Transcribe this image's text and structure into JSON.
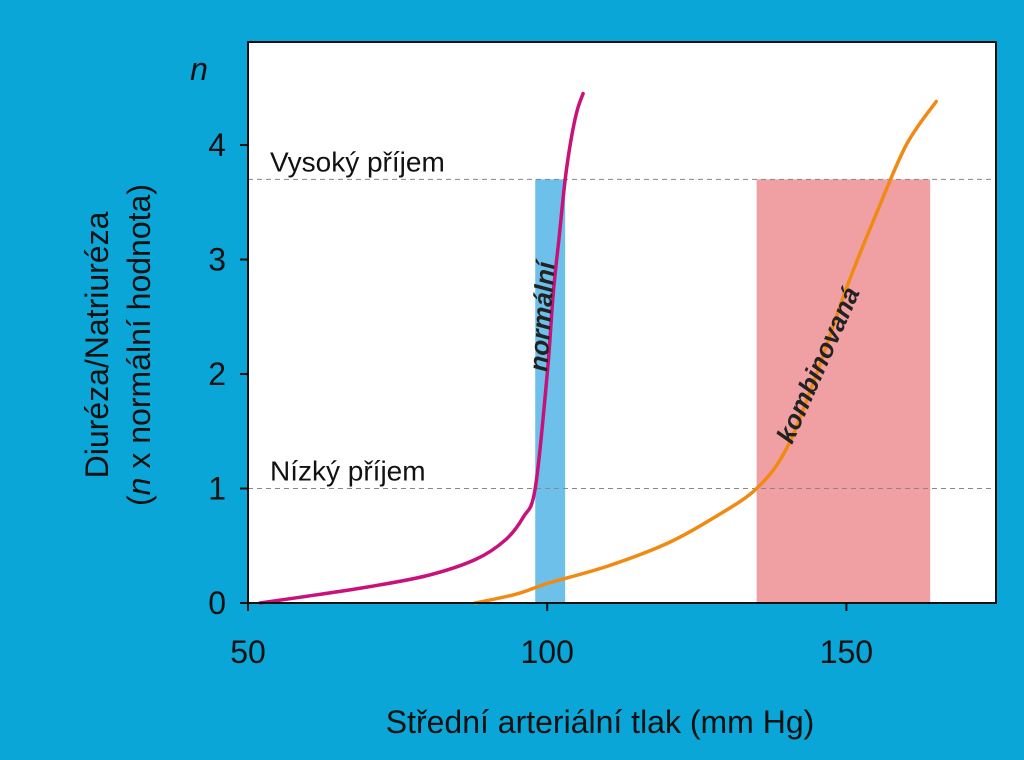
{
  "chart_data": {
    "type": "line",
    "xlabel": "Střední arteriální tlak (mm Hg)",
    "ylabel_line1": "Diuréza/Natriuréza",
    "ylabel_line2_italic": "n",
    "ylabel_line2_rest": " x normální hodnota)",
    "ylabel_line2_open": "(",
    "y_unit_label": "n",
    "xlim": [
      50,
      175
    ],
    "ylim": [
      0,
      4.9
    ],
    "xticks": [
      50,
      100,
      150
    ],
    "yticks": [
      0,
      1,
      2,
      3,
      4
    ],
    "grid": false,
    "reference_lines": [
      {
        "label": "Vysoký příjem",
        "y": 3.7
      },
      {
        "label": "Nízký příjem",
        "y": 1.0
      }
    ],
    "bands": [
      {
        "name": "normal-band",
        "x0": 98,
        "x1": 103,
        "y0": 0,
        "y1": 3.7,
        "color": "#6cc0ea"
      },
      {
        "name": "combined-band",
        "x0": 135,
        "x1": 164,
        "y0": 0,
        "y1": 3.7,
        "color": "#f0a0a3"
      }
    ],
    "series": [
      {
        "name": "normální",
        "color": "#c8127a",
        "x": [
          52,
          60,
          70,
          80,
          88,
          93,
          96,
          98,
          100,
          101,
          102,
          103,
          104,
          105,
          106
        ],
        "y": [
          0.0,
          0.06,
          0.14,
          0.24,
          0.38,
          0.55,
          0.75,
          1.0,
          2.0,
          2.7,
          3.2,
          3.7,
          4.05,
          4.3,
          4.45
        ]
      },
      {
        "name": "kombinovaná",
        "color": "#f08a12",
        "x": [
          88,
          95,
          100,
          110,
          120,
          128,
          135,
          140,
          145,
          150,
          155,
          160,
          165
        ],
        "y": [
          0.0,
          0.08,
          0.17,
          0.32,
          0.52,
          0.75,
          1.0,
          1.35,
          2.0,
          2.75,
          3.4,
          4.0,
          4.38
        ]
      }
    ]
  },
  "colors": {
    "background": "#0aa6d8",
    "plot_area": "#ffffff",
    "reference_line": "#888888"
  }
}
